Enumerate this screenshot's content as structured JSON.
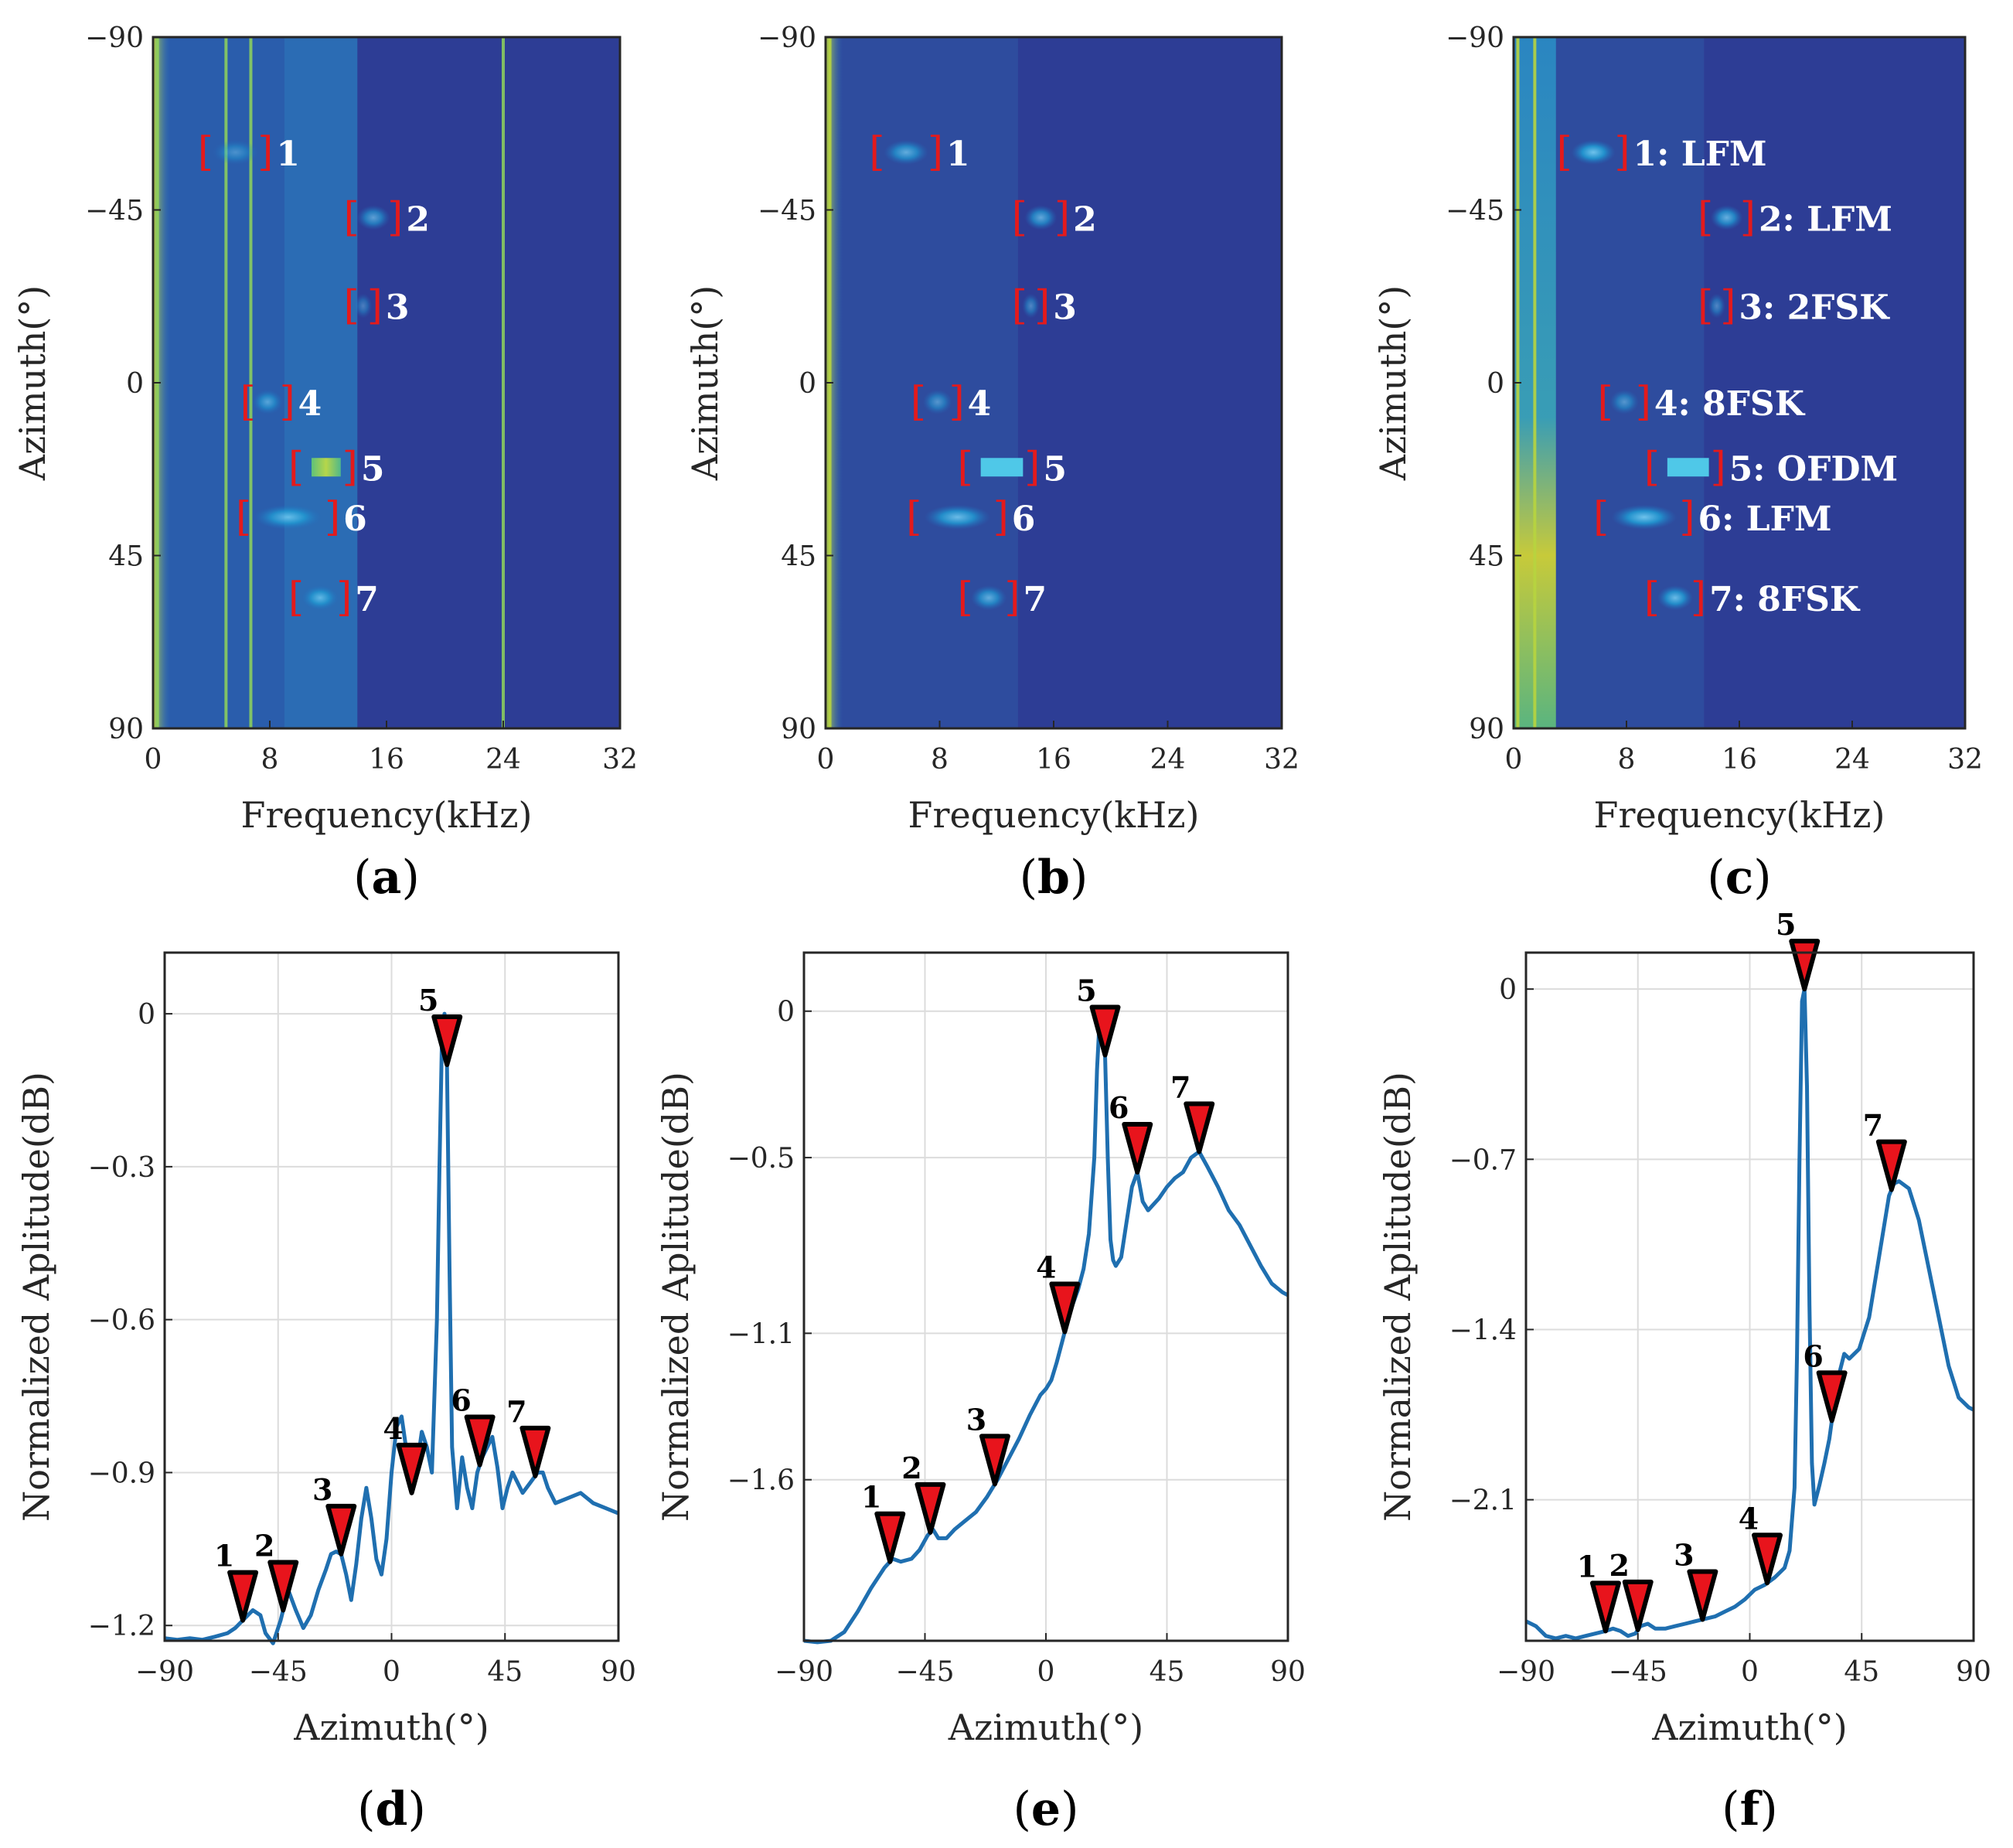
{
  "chart_data": [
    {
      "id": "a",
      "type": "heatmap",
      "panel_label": "a",
      "xlabel": "Frequency(kHz)",
      "ylabel": "Azimuth(°)",
      "xlim": [
        0,
        32
      ],
      "ylim": [
        -90,
        90
      ],
      "xticks": [
        0,
        8,
        16,
        24,
        32
      ],
      "yticks": [
        -90,
        -45,
        0,
        45,
        90
      ],
      "lines": [
        0.3,
        5,
        6.7,
        24
      ],
      "targets": [
        {
          "label": "1",
          "az": -60,
          "f0": 3.6,
          "f1": 7.7,
          "intensity": 0.05
        },
        {
          "label": "2",
          "az": -43,
          "f0": 13.6,
          "f1": 16.6,
          "intensity": 0.25
        },
        {
          "label": "3",
          "az": -20,
          "f0": 13.6,
          "f1": 15.2,
          "intensity": 0.05
        },
        {
          "label": "4",
          "az": 5,
          "f0": 6.5,
          "f1": 9.2,
          "intensity": 0.2
        },
        {
          "label": "5",
          "az": 22,
          "f0": 9.8,
          "f1": 13.5,
          "intensity": 0.75
        },
        {
          "label": "6",
          "az": 35,
          "f0": 6.2,
          "f1": 12.3,
          "intensity": 0.35
        },
        {
          "label": "7",
          "az": 56,
          "f0": 9.8,
          "f1": 13.1,
          "intensity": 0.3
        }
      ]
    },
    {
      "id": "b",
      "type": "heatmap",
      "panel_label": "b",
      "xlabel": "Frequency(kHz)",
      "ylabel": "Azimuth(°)",
      "xlim": [
        0,
        32
      ],
      "ylim": [
        -90,
        90
      ],
      "xticks": [
        0,
        8,
        16,
        24,
        32
      ],
      "yticks": [
        -90,
        -45,
        0,
        45,
        90
      ],
      "lines": [
        0.3
      ],
      "targets": [
        {
          "label": "1",
          "az": -60,
          "f0": 3.6,
          "f1": 7.7,
          "intensity": 0.3
        },
        {
          "label": "2",
          "az": -43,
          "f0": 13.6,
          "f1": 16.6,
          "intensity": 0.3
        },
        {
          "label": "3",
          "az": -20,
          "f0": 13.6,
          "f1": 15.2,
          "intensity": 0.1
        },
        {
          "label": "4",
          "az": 5,
          "f0": 6.5,
          "f1": 9.2,
          "intensity": 0.15
        },
        {
          "label": "5",
          "az": 22,
          "f0": 9.8,
          "f1": 14.5,
          "intensity": 0.6
        },
        {
          "label": "6",
          "az": 35,
          "f0": 6.2,
          "f1": 12.3,
          "intensity": 0.4
        },
        {
          "label": "7",
          "az": 56,
          "f0": 9.8,
          "f1": 13.1,
          "intensity": 0.3
        }
      ]
    },
    {
      "id": "c",
      "type": "heatmap",
      "panel_label": "c",
      "xlabel": "Frequency(kHz)",
      "ylabel": "Azimuth(°)",
      "xlim": [
        0,
        32
      ],
      "ylim": [
        -90,
        90
      ],
      "xticks": [
        0,
        8,
        16,
        24,
        32
      ],
      "yticks": [
        -90,
        -45,
        0,
        45,
        90
      ],
      "lines": [
        0.3,
        1.5
      ],
      "targets": [
        {
          "label": "1: LFM",
          "az": -60,
          "f0": 3.6,
          "f1": 7.7,
          "intensity": 0.45
        },
        {
          "label": "2: LFM",
          "az": -43,
          "f0": 13.6,
          "f1": 16.6,
          "intensity": 0.35
        },
        {
          "label": "3: 2FSK",
          "az": -20,
          "f0": 13.6,
          "f1": 15.2,
          "intensity": 0.1
        },
        {
          "label": "4: 8FSK",
          "az": 5,
          "f0": 6.5,
          "f1": 9.2,
          "intensity": 0.15
        },
        {
          "label": "5: OFDM",
          "az": 22,
          "f0": 9.8,
          "f1": 14.5,
          "intensity": 0.7
        },
        {
          "label": "6: LFM",
          "az": 35,
          "f0": 6.2,
          "f1": 12.3,
          "intensity": 0.45
        },
        {
          "label": "7: 8FSK",
          "az": 56,
          "f0": 9.8,
          "f1": 13.1,
          "intensity": 0.4
        }
      ]
    },
    {
      "id": "d",
      "type": "line",
      "panel_label": "d",
      "xlabel": "Azimuth(°)",
      "ylabel": "Normalized Aplitude(dB)",
      "xlim": [
        -90,
        90
      ],
      "ylim": [
        -1.23,
        0.12
      ],
      "xticks": [
        -90,
        -45,
        0,
        45,
        90
      ],
      "yticks": [
        -1.2,
        -0.9,
        -0.6,
        -0.3,
        0
      ],
      "ytick_labels": [
        "−1.2",
        "−0.9",
        "−0.6",
        "−0.3",
        "0"
      ],
      "xtick_labels": [
        "−90",
        "−45",
        "0",
        "45",
        "90"
      ],
      "series": [
        {
          "name": "spectrum",
          "x": [
            -90,
            -85,
            -80,
            -75,
            -70,
            -65,
            -62,
            -60,
            -57,
            -55,
            -52,
            -50,
            -47,
            -44,
            -41,
            -38,
            -35,
            -32,
            -29,
            -26,
            -24,
            -22,
            -20,
            -18,
            -16,
            -14,
            -12,
            -10,
            -8,
            -6,
            -4,
            -2,
            0,
            2,
            4,
            6,
            8,
            10,
            12,
            14,
            16,
            18,
            19,
            20,
            21,
            22,
            23,
            24,
            26,
            28,
            30,
            32,
            34,
            36,
            38,
            40,
            42,
            44,
            46,
            48,
            50,
            52,
            55,
            58,
            60,
            62,
            65,
            70,
            75,
            80,
            85,
            90
          ],
          "y": [
            -1.225,
            -1.228,
            -1.225,
            -1.228,
            -1.222,
            -1.215,
            -1.205,
            -1.195,
            -1.18,
            -1.17,
            -1.18,
            -1.215,
            -1.235,
            -1.19,
            -1.13,
            -1.17,
            -1.205,
            -1.18,
            -1.13,
            -1.09,
            -1.06,
            -1.055,
            -1.06,
            -1.1,
            -1.15,
            -1.08,
            -0.99,
            -0.93,
            -0.99,
            -1.07,
            -1.1,
            -1.03,
            -0.9,
            -0.81,
            -0.79,
            -0.86,
            -0.94,
            -0.89,
            -0.82,
            -0.85,
            -0.9,
            -0.6,
            -0.3,
            -0.05,
            0.0,
            -0.1,
            -0.5,
            -0.85,
            -0.97,
            -0.87,
            -0.93,
            -0.97,
            -0.9,
            -0.87,
            -0.85,
            -0.83,
            -0.89,
            -0.97,
            -0.93,
            -0.9,
            -0.92,
            -0.94,
            -0.92,
            -0.9,
            -0.9,
            -0.93,
            -0.96,
            -0.95,
            -0.94,
            -0.96,
            -0.97,
            -0.98
          ]
        }
      ],
      "markers": [
        {
          "label": "1",
          "x": -59
        },
        {
          "label": "2",
          "x": -43
        },
        {
          "label": "3",
          "x": -20
        },
        {
          "label": "4",
          "x": 8
        },
        {
          "label": "5",
          "x": 22
        },
        {
          "label": "6",
          "x": 35
        },
        {
          "label": "7",
          "x": 57
        }
      ]
    },
    {
      "id": "e",
      "type": "line",
      "panel_label": "e",
      "xlabel": "Azimuth(°)",
      "ylabel": "Normalized Aplitude(dB)",
      "xlim": [
        -90,
        90
      ],
      "ylim": [
        -2.15,
        0.2
      ],
      "xticks": [
        -90,
        -45,
        0,
        45,
        90
      ],
      "yticks": [
        -1.6,
        -1.1,
        -0.5,
        0
      ],
      "ytick_labels": [
        "−1.6",
        "−1.1",
        "−0.5",
        "0"
      ],
      "xtick_labels": [
        "−90",
        "−45",
        "0",
        "45",
        "90"
      ],
      "series": [
        {
          "name": "spectrum",
          "x": [
            -90,
            -85,
            -80,
            -75,
            -70,
            -65,
            -60,
            -57,
            -54,
            -50,
            -47,
            -44,
            -42,
            -40,
            -37,
            -34,
            -30,
            -26,
            -22,
            -18,
            -14,
            -10,
            -6,
            -2,
            0,
            2,
            4,
            6,
            8,
            10,
            12,
            14,
            16,
            18,
            19,
            20,
            21,
            22,
            23,
            24,
            25,
            26,
            28,
            30,
            32,
            34,
            36,
            38,
            40,
            42,
            45,
            48,
            51,
            54,
            57,
            60,
            64,
            68,
            72,
            76,
            80,
            84,
            88,
            90
          ],
          "y": [
            -2.15,
            -2.155,
            -2.15,
            -2.12,
            -2.05,
            -1.97,
            -1.9,
            -1.87,
            -1.88,
            -1.87,
            -1.84,
            -1.79,
            -1.77,
            -1.8,
            -1.8,
            -1.77,
            -1.74,
            -1.71,
            -1.66,
            -1.6,
            -1.53,
            -1.46,
            -1.38,
            -1.31,
            -1.29,
            -1.26,
            -1.2,
            -1.13,
            -1.06,
            -1.0,
            -0.95,
            -0.88,
            -0.76,
            -0.5,
            -0.2,
            -0.02,
            0.0,
            -0.15,
            -0.5,
            -0.78,
            -0.85,
            -0.87,
            -0.84,
            -0.72,
            -0.6,
            -0.55,
            -0.65,
            -0.68,
            -0.66,
            -0.64,
            -0.6,
            -0.57,
            -0.55,
            -0.5,
            -0.48,
            -0.53,
            -0.6,
            -0.68,
            -0.73,
            -0.8,
            -0.87,
            -0.93,
            -0.96,
            -0.97
          ]
        }
      ],
      "markers": [
        {
          "label": "1",
          "x": -58
        },
        {
          "label": "2",
          "x": -43
        },
        {
          "label": "3",
          "x": -19
        },
        {
          "label": "4",
          "x": 7
        },
        {
          "label": "5",
          "x": 22
        },
        {
          "label": "6",
          "x": 34
        },
        {
          "label": "7",
          "x": 57
        }
      ]
    },
    {
      "id": "f",
      "type": "line",
      "panel_label": "f",
      "xlabel": "Azimuth(°)",
      "ylabel": "Normalized Aplitude(dB)",
      "xlim": [
        -90,
        90
      ],
      "ylim": [
        -2.68,
        0.15
      ],
      "xticks": [
        -90,
        -45,
        0,
        45,
        90
      ],
      "yticks": [
        -2.1,
        -1.4,
        -0.7,
        0
      ],
      "ytick_labels": [
        "−2.1",
        "−1.4",
        "−0.7",
        "0"
      ],
      "xtick_labels": [
        "−90",
        "−45",
        "0",
        "45",
        "90"
      ],
      "series": [
        {
          "name": "spectrum",
          "x": [
            -90,
            -86,
            -82,
            -78,
            -74,
            -70,
            -66,
            -62,
            -58,
            -55,
            -52,
            -49,
            -46,
            -44,
            -41,
            -38,
            -34,
            -30,
            -26,
            -22,
            -18,
            -14,
            -10,
            -6,
            -2,
            2,
            6,
            10,
            14,
            16,
            18,
            19,
            20,
            21,
            22,
            23,
            24,
            25,
            26,
            28,
            30,
            32,
            34,
            36,
            38,
            40,
            44,
            48,
            52,
            56,
            58,
            60,
            64,
            68,
            72,
            76,
            80,
            84,
            88,
            90
          ],
          "y": [
            -2.6,
            -2.62,
            -2.66,
            -2.67,
            -2.66,
            -2.67,
            -2.66,
            -2.65,
            -2.64,
            -2.63,
            -2.64,
            -2.66,
            -2.65,
            -2.62,
            -2.61,
            -2.63,
            -2.63,
            -2.62,
            -2.61,
            -2.6,
            -2.59,
            -2.58,
            -2.56,
            -2.54,
            -2.51,
            -2.47,
            -2.45,
            -2.42,
            -2.38,
            -2.31,
            -2.05,
            -1.5,
            -0.7,
            -0.05,
            0.0,
            -0.4,
            -1.3,
            -1.95,
            -2.12,
            -2.04,
            -1.95,
            -1.85,
            -1.7,
            -1.58,
            -1.5,
            -1.52,
            -1.48,
            -1.35,
            -1.1,
            -0.85,
            -0.8,
            -0.79,
            -0.82,
            -0.95,
            -1.15,
            -1.35,
            -1.55,
            -1.68,
            -1.72,
            -1.73
          ]
        }
      ],
      "markers": [
        {
          "label": "1",
          "x": -58
        },
        {
          "label": "2",
          "x": -45
        },
        {
          "label": "3",
          "x": -19
        },
        {
          "label": "4",
          "x": 7
        },
        {
          "label": "5",
          "x": 22
        },
        {
          "label": "6",
          "x": 33
        },
        {
          "label": "7",
          "x": 57
        }
      ]
    }
  ],
  "colors": {
    "line": "#1f6fb0",
    "marker_fill": "#e8141c",
    "marker_edge": "#000000",
    "bracket": "#e41a1c",
    "heat_low": "#2d3d95",
    "heat_mid": "#1f8fc5",
    "heat_high": "#c2d93a"
  }
}
